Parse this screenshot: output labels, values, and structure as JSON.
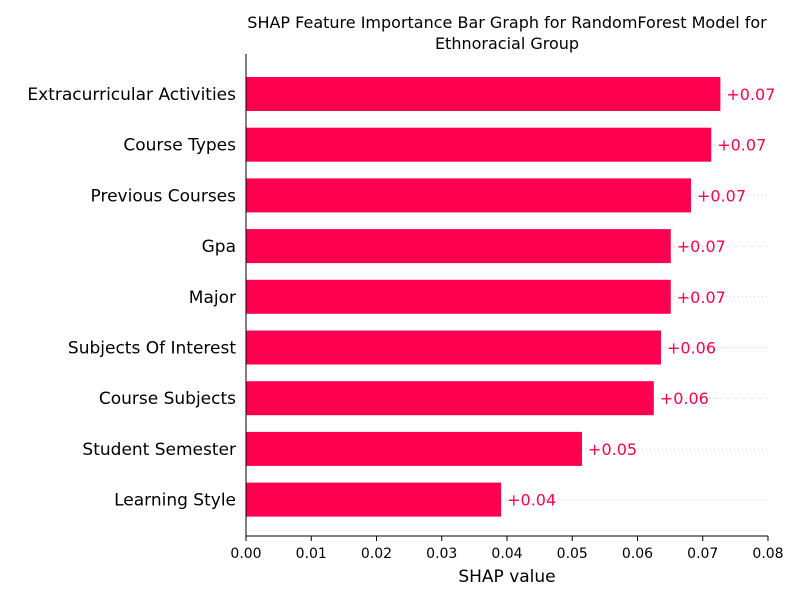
{
  "chart_data": {
    "type": "bar",
    "orientation": "horizontal",
    "title_lines": [
      "SHAP Feature Importance Bar Graph for RandomForest Model for",
      "Ethnoracial Group"
    ],
    "xlabel": "SHAP value",
    "ylabel": "",
    "xlim": [
      0.0,
      0.08
    ],
    "xticks": [
      "0.00",
      "0.01",
      "0.02",
      "0.03",
      "0.04",
      "0.05",
      "0.06",
      "0.07",
      "0.08"
    ],
    "categories": [
      "Extracurricular Activities",
      "Course Types",
      "Previous Courses",
      "Gpa",
      "Major",
      "Subjects Of Interest",
      "Course Subjects",
      "Student Semester",
      "Learning Style"
    ],
    "values": [
      0.0727,
      0.0713,
      0.0682,
      0.0651,
      0.0651,
      0.0636,
      0.0625,
      0.0515,
      0.0391
    ],
    "value_labels": [
      "+0.07",
      "+0.07",
      "+0.07",
      "+0.07",
      "+0.07",
      "+0.06",
      "+0.06",
      "+0.05",
      "+0.04"
    ],
    "bar_color": "#ff0051",
    "grid": false,
    "legend": "none"
  }
}
